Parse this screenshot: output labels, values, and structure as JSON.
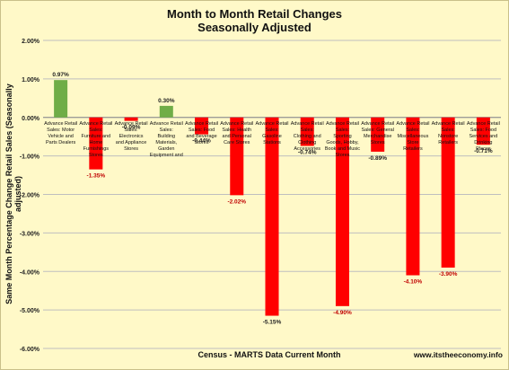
{
  "header": {
    "title": "Month to Month Retail Changes",
    "subtitle": "Seasonally Adjusted"
  },
  "footer": {
    "xlabel": "Census - MARTS Data Current Month",
    "source": "www.itstheeconomy.info"
  },
  "colors": {
    "background": "#FFF9C8",
    "positive": "#70AD47",
    "negative": "#FF0000",
    "grid": "#BFBFBF"
  },
  "chart_data": {
    "type": "bar",
    "title": "Month to Month Retail Changes",
    "subtitle": "Seasonally Adjusted",
    "xlabel": "Census - MARTS Data Current Month",
    "ylabel": "Same Month Percentage Change Retail Sales (Seasonally adjusted)",
    "ylim": [
      -6,
      2
    ],
    "yticks": [
      "2.00%",
      "1.00%",
      "0.00%",
      "-1.00%",
      "-2.00%",
      "-3.00%",
      "-4.00%",
      "-5.00%",
      "-6.00%"
    ],
    "grid": true,
    "legend": "none",
    "categories": [
      "Advance Retail Sales: Motor Vehicle and Parts Dealers",
      "Advance Retail Sales: Furniture and Home Furnishings Stores",
      "Advance Retail Sales: Electronics and Appliance Stores",
      "Advance Retail Sales: Building Materials, Garden Equipment and",
      "Advance Retail Sales: Food and Beverage Stores",
      "Advance Retail Sales: Health and Personal Care Stores",
      "Advance Retail Sales: Gasoline Stations",
      "Advance Retail Sales: Clothing and Clothing Accessories",
      "Advance Retail Sales: Sporting Goods, Hobby, Book and Music Stores",
      "Advance Retail Sales: General Merchandise Stores",
      "Advance Retail Sales: Miscellaneous Store Retailers",
      "Advance Retail Sales: Nonstore Retailers",
      "Advance Retail Sales: Food Services and Drinking Places"
    ],
    "values": [
      0.97,
      -1.35,
      -0.09,
      0.3,
      -0.44,
      -2.02,
      -5.15,
      -0.74,
      -4.9,
      -0.89,
      -4.1,
      -3.9,
      -0.71
    ],
    "value_labels": [
      "0.97%",
      "-1.35%",
      "-0.09%",
      "0.30%",
      "-0.44%",
      "-2.02%",
      "-5.15%",
      "-0.74%",
      "-4.90%",
      "-0.89%",
      "-4.10%",
      "-3.90%",
      "-0.71%"
    ]
  }
}
